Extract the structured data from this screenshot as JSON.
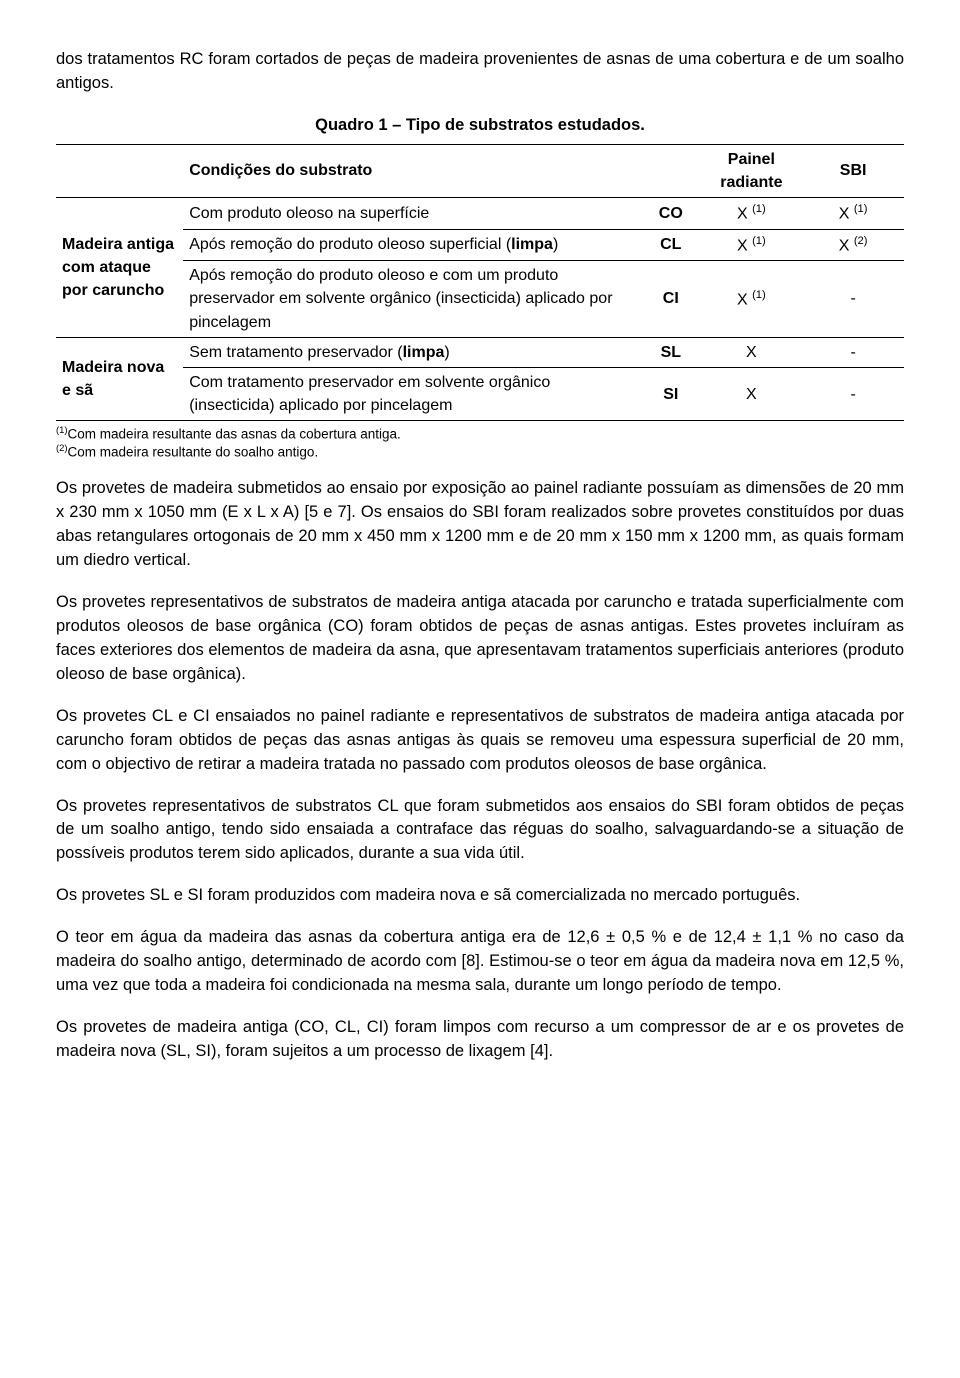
{
  "intro": "dos tratamentos RC foram cortados de peças de madeira provenientes de asnas de uma cobertura e de um soalho antigos.",
  "table": {
    "title": "Quadro 1 – Tipo de substratos estudados.",
    "header": {
      "condicoes": "Condições do substrato",
      "painel": "Painel radiante",
      "sbi": "SBI"
    },
    "group1_label": "Madeira antiga com ataque por caruncho",
    "group2_label": "Madeira nova e sã",
    "rows": [
      {
        "desc": "Com produto oleoso na superfície",
        "code": "CO",
        "painel": "X (1)",
        "sbi": "X (1)"
      },
      {
        "desc": "Após remoção do produto oleoso superficial (limpa)",
        "code": "CL",
        "painel": "X (1)",
        "sbi": "X (2)"
      },
      {
        "desc": "Após remoção do produto oleoso e com um produto preservador em solvente orgânico (insecticida) aplicado por pincelagem",
        "code": "CI",
        "painel": "X (1)",
        "sbi": "-"
      },
      {
        "desc": "Sem tratamento preservador (limpa)",
        "code": "SL",
        "painel": "X",
        "sbi": "-"
      },
      {
        "desc": "Com tratamento preservador em solvente orgânico (insecticida) aplicado por pincelagem",
        "code": "SI",
        "painel": "X",
        "sbi": "-"
      }
    ],
    "footnote1": "(1)Com madeira resultante das asnas da cobertura antiga.",
    "footnote2": "(2)Com madeira resultante do soalho antigo."
  },
  "paragraphs": [
    "Os provetes de madeira submetidos ao ensaio por exposição ao painel radiante possuíam as dimensões de 20 mm x 230 mm x 1050 mm (E x L x A) [5 e 7]. Os ensaios do SBI foram realizados sobre provetes constituídos por duas abas retangulares ortogonais de 20 mm x 450 mm x 1200 mm e de 20 mm x 150 mm x 1200 mm, as quais formam um diedro vertical.",
    "Os provetes representativos de substratos de madeira antiga atacada por caruncho e tratada superficialmente com produtos oleosos de base orgânica (CO) foram obtidos de peças de asnas antigas. Estes provetes incluíram as faces exteriores dos elementos de madeira da asna, que apresentavam tratamentos superficiais anteriores (produto oleoso de base orgânica).",
    "Os provetes CL e CI ensaiados no painel radiante e representativos de substratos de madeira antiga atacada por caruncho foram obtidos de peças das asnas antigas às quais se removeu uma espessura superficial de 20 mm, com o objectivo de retirar a madeira tratada no passado com produtos oleosos de base orgânica.",
    "Os provetes representativos de substratos CL que foram submetidos aos ensaios do SBI foram obtidos de peças de um soalho antigo, tendo sido ensaiada a contraface das réguas do soalho, salvaguardando-se a situação de possíveis produtos terem sido aplicados, durante a sua vida útil.",
    "Os provetes SL e SI foram produzidos com madeira nova e sã comercializada no mercado português.",
    "O teor em água da madeira das asnas da cobertura antiga era de 12,6 ± 0,5 % e de 12,4 ± 1,1 % no caso da madeira do soalho antigo, determinado de acordo com [8]. Estimou-se o teor em água da madeira nova em 12,5 %, uma vez que toda a madeira foi condicionada na mesma sala, durante um longo período de tempo.",
    "Os provetes de madeira antiga (CO, CL, CI) foram limpos com recurso a um compressor de ar e os provetes de madeira nova (SL, SI), foram sujeitos a um processo de lixagem [4]."
  ]
}
